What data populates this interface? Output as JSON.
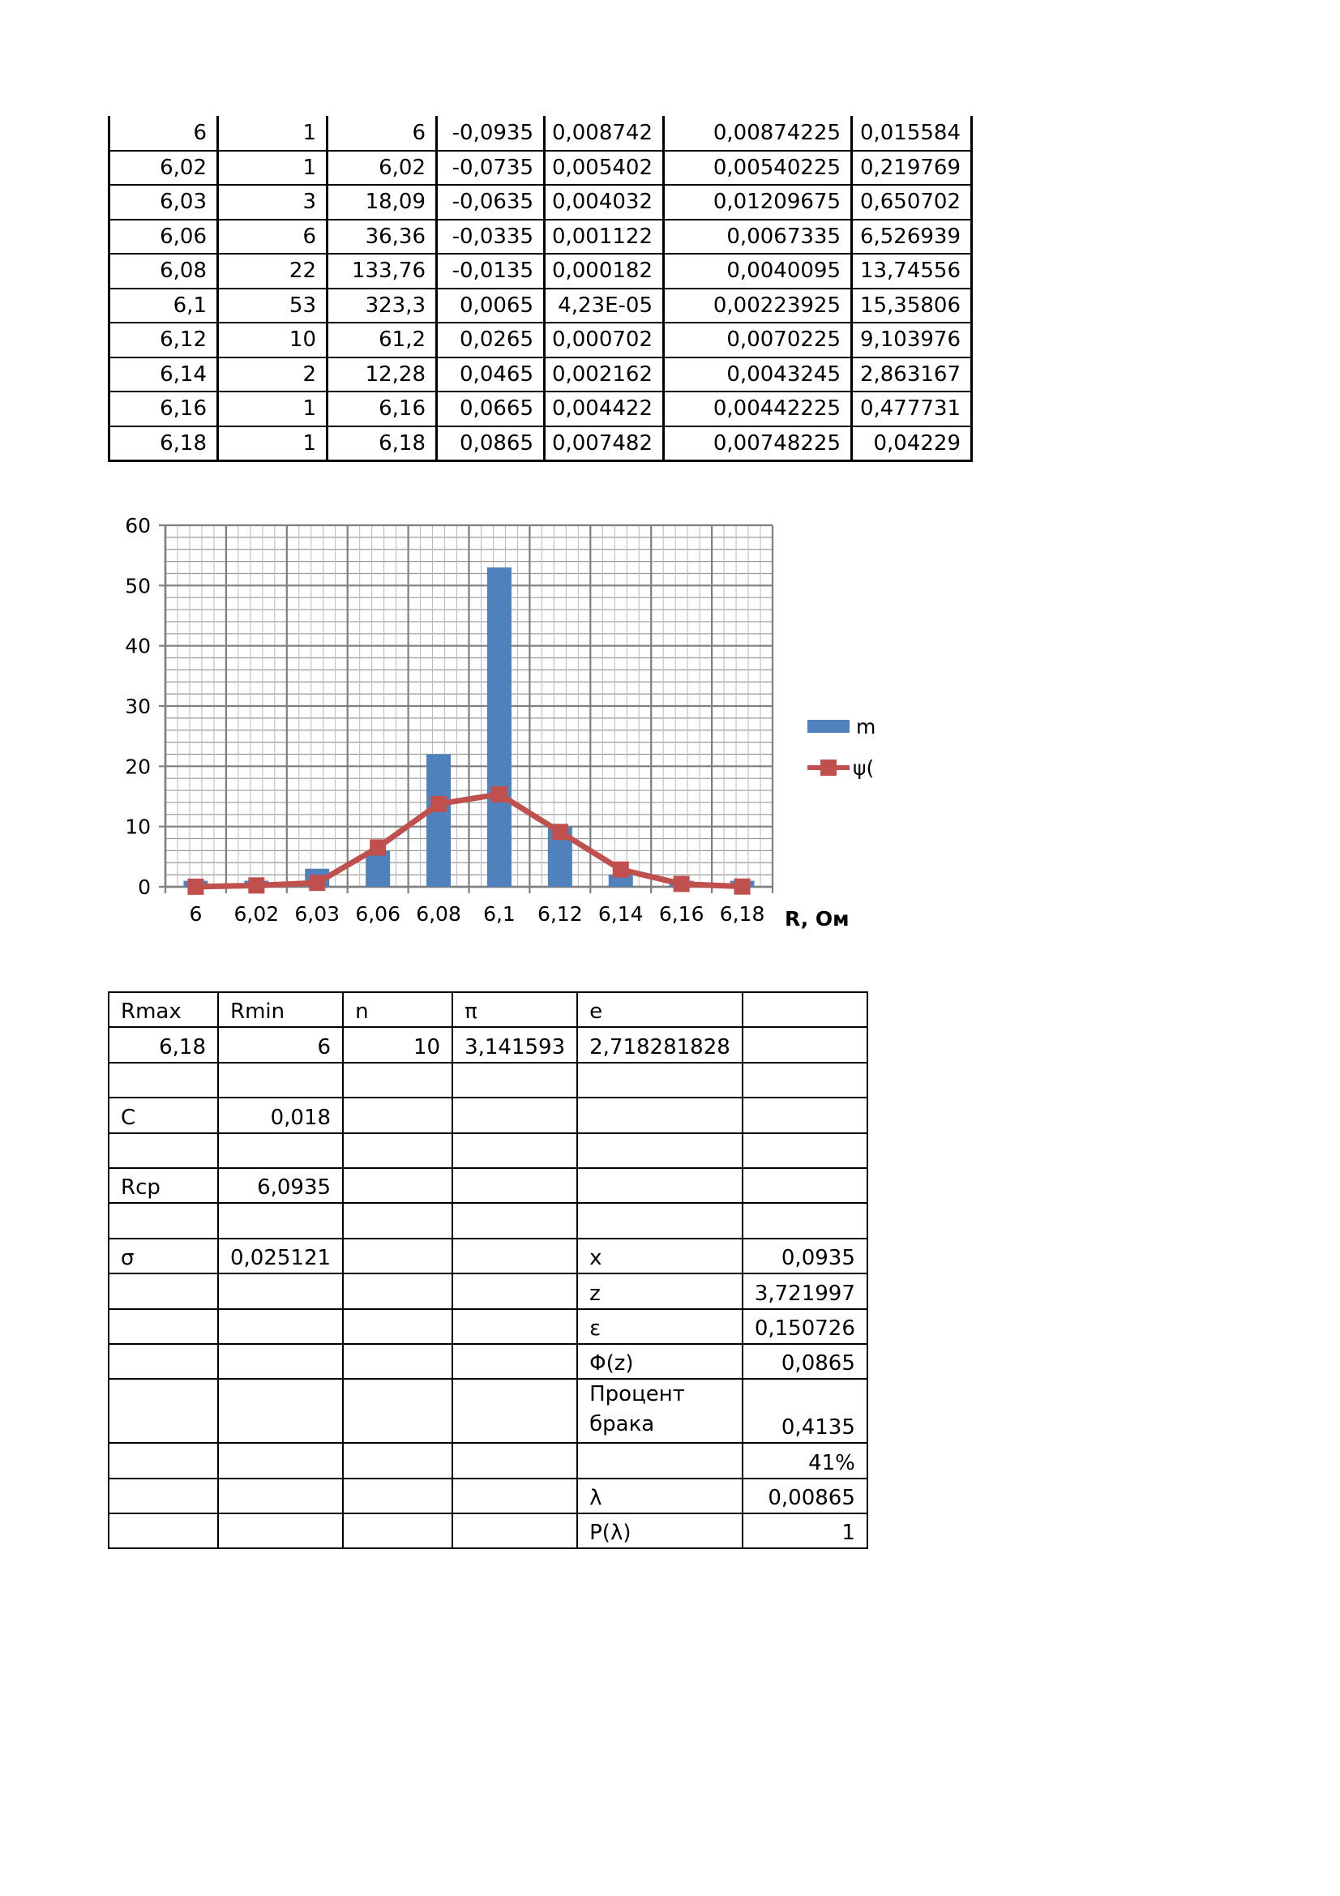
{
  "top_table": {
    "rows": [
      [
        "6",
        "1",
        "6",
        "-0,0935",
        "0,008742",
        "0,00874225",
        "0,015584"
      ],
      [
        "6,02",
        "1",
        "6,02",
        "-0,0735",
        "0,005402",
        "0,00540225",
        "0,219769"
      ],
      [
        "6,03",
        "3",
        "18,09",
        "-0,0635",
        "0,004032",
        "0,01209675",
        "0,650702"
      ],
      [
        "6,06",
        "6",
        "36,36",
        "-0,0335",
        "0,001122",
        "0,0067335",
        "6,526939"
      ],
      [
        "6,08",
        "22",
        "133,76",
        "-0,0135",
        "0,000182",
        "0,0040095",
        "13,74556"
      ],
      [
        "6,1",
        "53",
        "323,3",
        "0,0065",
        "4,23E-05",
        "0,00223925",
        "15,35806"
      ],
      [
        "6,12",
        "10",
        "61,2",
        "0,0265",
        "0,000702",
        "0,0070225",
        "9,103976"
      ],
      [
        "6,14",
        "2",
        "12,28",
        "0,0465",
        "0,002162",
        "0,0043245",
        "2,863167"
      ],
      [
        "6,16",
        "1",
        "6,16",
        "0,0665",
        "0,004422",
        "0,00442225",
        "0,477731"
      ],
      [
        "6,18",
        "1",
        "6,18",
        "0,0865",
        "0,007482",
        "0,00748225",
        "0,04229"
      ]
    ]
  },
  "chart_data": {
    "type": "bar",
    "categories": [
      "6",
      "6,02",
      "6,03",
      "6,06",
      "6,08",
      "6,1",
      "6,12",
      "6,14",
      "6,16",
      "6,18"
    ],
    "series": [
      {
        "name": "mj",
        "type": "bar",
        "color": "#4F81BD",
        "values": [
          1,
          1,
          3,
          6,
          22,
          53,
          10,
          2,
          1,
          1
        ]
      },
      {
        "name": "ψ(Ri)",
        "type": "line",
        "color": "#C0504D",
        "values": [
          0.015584,
          0.219769,
          0.650702,
          6.526939,
          13.74556,
          15.35806,
          9.103976,
          2.863167,
          0.477731,
          0.04229
        ]
      }
    ],
    "title": "",
    "xlabel": "R, Ом",
    "ylabel": "",
    "ylim": [
      0,
      60
    ],
    "yticks": [
      "0",
      "10",
      "20",
      "30",
      "40",
      "50",
      "60"
    ],
    "grid": true,
    "legend": "right"
  },
  "calc_table": {
    "rows": [
      [
        "Rmax",
        "Rmin",
        "n",
        "π",
        "e",
        ""
      ],
      [
        "6,18",
        "6",
        "10",
        "3,141593",
        "2,718281828",
        ""
      ],
      [
        "",
        "",
        "",
        "",
        "",
        ""
      ],
      [
        "C",
        "0,018",
        "",
        "",
        "",
        ""
      ],
      [
        "",
        "",
        "",
        "",
        "",
        ""
      ],
      [
        "Rcp",
        "6,0935",
        "",
        "",
        "",
        ""
      ],
      [
        "",
        "",
        "",
        "",
        "",
        ""
      ],
      [
        "σ",
        "0,025121",
        "",
        "",
        "x",
        "0,0935"
      ],
      [
        "",
        "",
        "",
        "",
        "z",
        "3,721997"
      ],
      [
        "",
        "",
        "",
        "",
        "ε",
        "0,150726"
      ],
      [
        "",
        "",
        "",
        "",
        "Φ(z)",
        "0,0865"
      ],
      [
        "",
        "",
        "",
        "",
        "Процент брака",
        "0,4135"
      ],
      [
        "",
        "",
        "",
        "",
        "",
        "41%"
      ],
      [
        "",
        "",
        "",
        "",
        "λ",
        "0,00865"
      ],
      [
        "",
        "",
        "",
        "",
        "P(λ)",
        "1"
      ]
    ]
  }
}
